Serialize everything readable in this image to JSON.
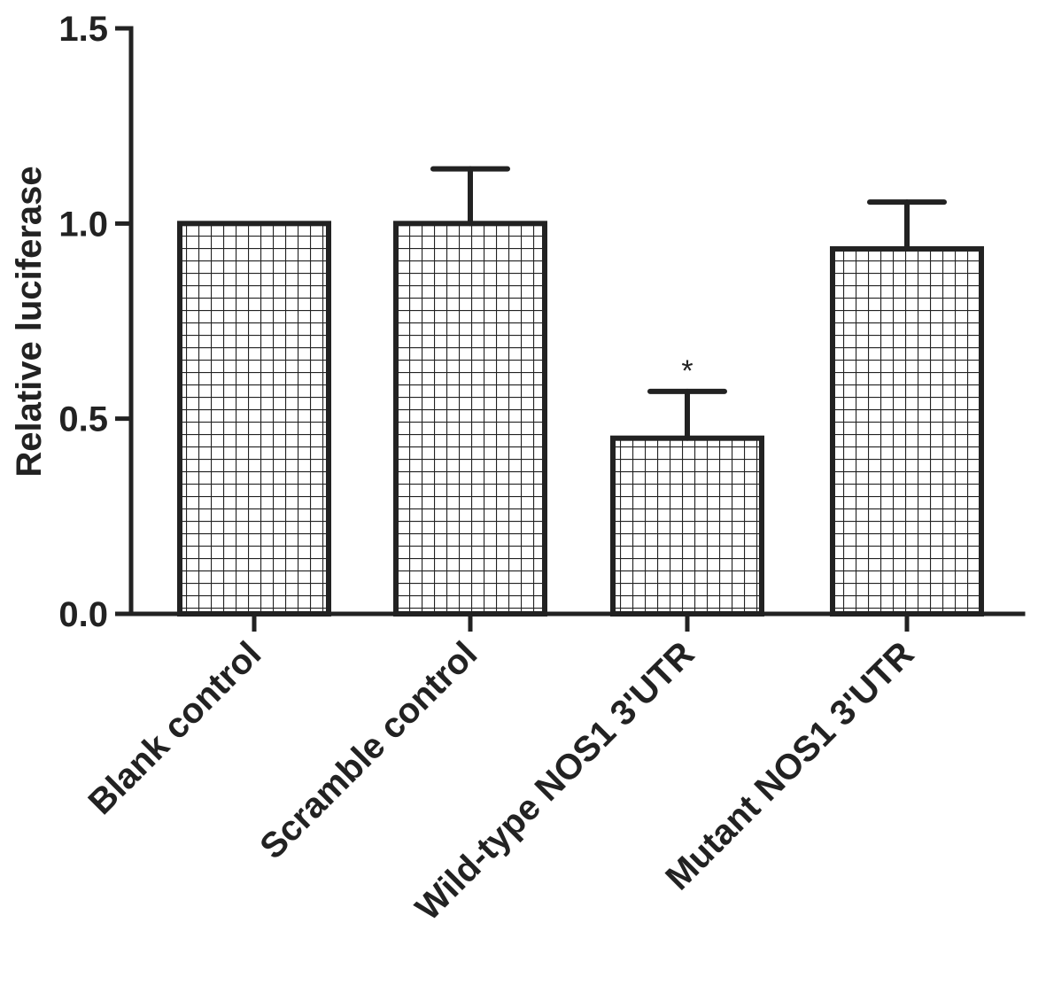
{
  "chart_data": {
    "type": "bar",
    "title": "",
    "xlabel": "",
    "ylabel": "Relative luciferase",
    "ylim": [
      0,
      1.5
    ],
    "yticks": [
      "0.0",
      "0.5",
      "1.0",
      "1.5"
    ],
    "ytick_values": [
      0,
      0.5,
      1.0,
      1.5
    ],
    "categories": [
      "Blank control",
      "Scramble control",
      "Wild-type NOS1 3'UTR",
      "Mutant NOS1 3'UTR"
    ],
    "values": [
      1.0,
      1.0,
      0.45,
      0.935
    ],
    "error_upper": [
      0,
      0.14,
      0.12,
      0.12
    ],
    "annotations": [
      "",
      "",
      "*",
      ""
    ],
    "bar_fill": "grid-pattern",
    "colors": {
      "ink": "#222222",
      "background": "#ffffff"
    },
    "grid": false,
    "legend": "none"
  }
}
